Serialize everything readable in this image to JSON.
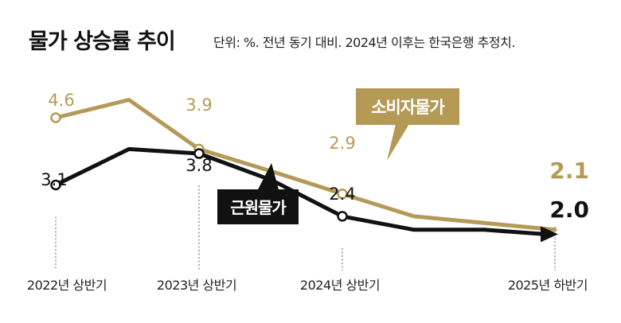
{
  "title": "물가 상승률 추이",
  "subtitle": "단위: %. 전년 동기 대비. 2024년 이후는 한국은행 추정치.",
  "chart_data": {
    "type": "line",
    "title": "물가 상승률 추이",
    "unit": "%",
    "note": "전년 동기 대비. 2024년 이후는 한국은행 추정치.",
    "x": [
      0,
      1,
      2,
      3,
      4,
      5,
      6,
      7
    ],
    "tick_positions": [
      0,
      2,
      4,
      7
    ],
    "tick_labels": [
      "2022년 상반기",
      "2023년 상반기",
      "2024년 상반기",
      "2025년 하반기"
    ],
    "ylim": [
      1.5,
      5.0
    ],
    "colors": {
      "consumer": "#b59a57",
      "core": "#111111"
    },
    "series": [
      {
        "key": "consumer",
        "name": "소비자물가",
        "values": [
          4.6,
          5.0,
          3.9,
          3.4,
          2.9,
          2.4,
          2.25,
          2.1
        ],
        "labels": [
          "4.6",
          "",
          "3.9",
          "",
          "2.9",
          "",
          "",
          "2.1"
        ]
      },
      {
        "key": "core",
        "name": "근원물가",
        "values": [
          3.1,
          3.9,
          3.8,
          3.2,
          2.4,
          2.1,
          2.1,
          2.0
        ],
        "labels": [
          "3.1",
          "",
          "3.8",
          "",
          "2.4",
          "",
          "",
          "2.0"
        ]
      }
    ]
  }
}
